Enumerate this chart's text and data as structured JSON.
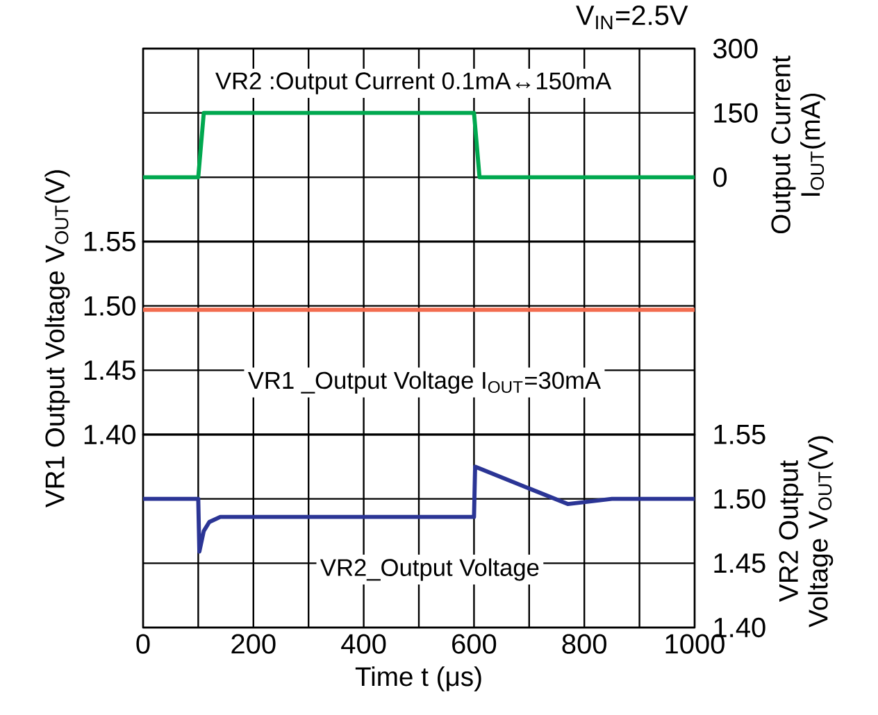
{
  "chart_data": [
    {
      "type": "line",
      "title": "V$_{IN}$=2.5V",
      "annotations": [
        "VR2 :Output Current 0.1mA↔150mA"
      ],
      "y2label": "Output Current I$_{OUT}$(mA)",
      "xlim": [
        0,
        1000
      ],
      "xticks": [
        0,
        {
          "value": 100,
          "label": null
        },
        200,
        {
          "value": 300,
          "label": null
        },
        400,
        {
          "value": 500,
          "label": null
        },
        600,
        {
          "value": 700,
          "label": null
        },
        800,
        {
          "value": 900,
          "label": null
        },
        1000
      ],
      "y2lim": [
        -150,
        300
      ],
      "y2ticks": [
        0,
        150,
        300
      ],
      "grid": true,
      "tick_labels": "y",
      "series": [
        {
          "axis": "y2",
          "color": "#00a84f",
          "x": [
            0,
            100,
            110,
            600,
            610,
            1000
          ],
          "values": [
            0,
            0,
            150,
            150,
            0,
            0
          ]
        }
      ]
    },
    {
      "type": "line",
      "annotations": [
        "VR1 _Output Voltage I$_{OUT}$=30mA"
      ],
      "ylabel": "VR1 Output Voltage V$_{OUT}$(V)",
      "xlim": [
        0,
        1000
      ],
      "xticks": [
        0,
        {
          "value": 100,
          "label": null
        },
        200,
        {
          "value": 300,
          "label": null
        },
        400,
        {
          "value": 500,
          "label": null
        },
        600,
        {
          "value": 700,
          "label": null
        },
        800,
        {
          "value": 900,
          "label": null
        },
        1000
      ],
      "ylim": [
        1.4,
        1.55
      ],
      "yticks": [
        {
          "value": 1.4,
          "label": "1.40"
        },
        {
          "value": 1.45,
          "label": "1.45"
        },
        {
          "value": 1.5,
          "label": "1.50"
        },
        {
          "value": 1.55,
          "label": "1.55"
        }
      ],
      "grid": true,
      "tick_labels": "y",
      "series": [
        {
          "color": "#f26c4f",
          "x": [
            0,
            1000
          ],
          "values": [
            1.497,
            1.497
          ]
        }
      ]
    },
    {
      "type": "line",
      "annotations": [
        "VR2_Output Voltage"
      ],
      "xlabel": "Time t (μs)",
      "y2label": "VR2 Output Voltage V$_{OUT}$(V)",
      "xlim": [
        0,
        1000
      ],
      "xticks": [
        0,
        {
          "value": 100,
          "label": null
        },
        200,
        {
          "value": 300,
          "label": null
        },
        400,
        {
          "value": 500,
          "label": null
        },
        600,
        {
          "value": 700,
          "label": null
        },
        800,
        {
          "value": 900,
          "label": null
        },
        1000
      ],
      "y2lim": [
        1.4,
        1.55
      ],
      "y2ticks": [
        {
          "value": 1.4,
          "label": "1.40"
        },
        {
          "value": 1.45,
          "label": "1.45"
        },
        {
          "value": 1.5,
          "label": "1.50"
        },
        {
          "value": 1.55,
          "label": "1.55"
        }
      ],
      "grid": true,
      "series": [
        {
          "axis": "y2",
          "color": "#2b3595",
          "x": [
            0,
            100,
            102,
            110,
            120,
            140,
            600,
            602,
            770,
            850,
            1000
          ],
          "values": [
            1.5,
            1.5,
            1.459,
            1.475,
            1.482,
            1.486,
            1.486,
            1.525,
            1.496,
            1.5,
            1.5
          ]
        }
      ]
    }
  ]
}
